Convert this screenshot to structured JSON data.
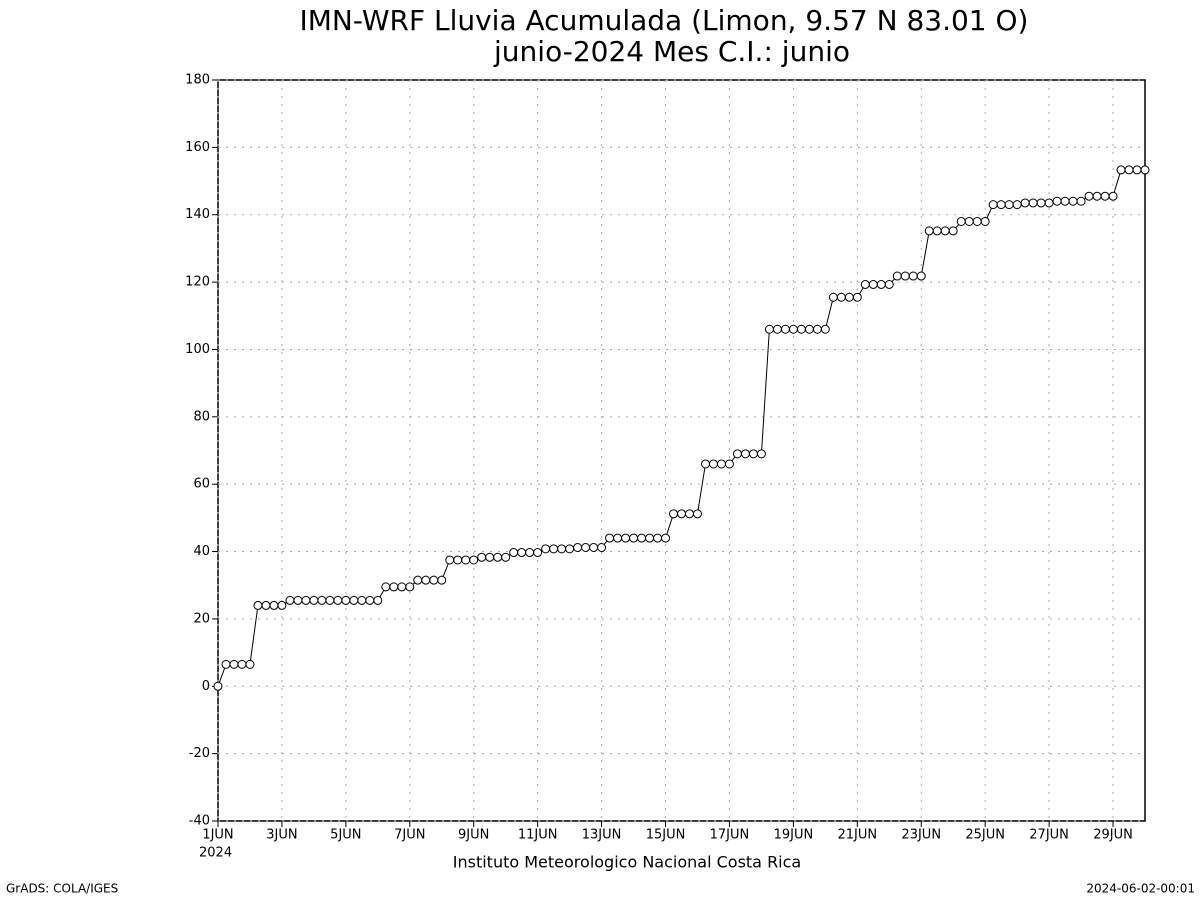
{
  "chart_data": {
    "type": "line",
    "title": "IMN-WRF  Lluvia Acumulada (Limon, 9.57  N 83.01  O)",
    "subtitle": "junio-2024 Mes C.I.: junio",
    "x_year_label": "2024",
    "footer_center": "Instituto Meteorologico Nacional Costa Rica",
    "footer_left": "GrADS: COLA/IGES",
    "footer_right": "2024-06-02-00:01",
    "x": [
      1,
      1.25,
      1.5,
      1.75,
      2,
      2.25,
      2.5,
      2.75,
      3,
      3.25,
      3.5,
      3.75,
      4,
      4.25,
      4.5,
      4.75,
      5,
      5.25,
      5.5,
      5.75,
      6,
      6.25,
      6.5,
      6.75,
      7,
      7.25,
      7.5,
      7.75,
      8,
      8.25,
      8.5,
      8.75,
      9,
      9.25,
      9.5,
      9.75,
      10,
      10.25,
      10.5,
      10.75,
      11,
      11.25,
      11.5,
      11.75,
      12,
      12.25,
      12.5,
      12.75,
      13,
      13.25,
      13.5,
      13.75,
      14,
      14.25,
      14.5,
      14.75,
      15,
      15.25,
      15.5,
      15.75,
      16,
      16.25,
      16.5,
      16.75,
      17,
      17.25,
      17.5,
      17.75,
      18,
      18.25,
      18.5,
      18.75,
      19,
      19.25,
      19.5,
      19.75,
      20,
      20.25,
      20.5,
      20.75,
      21,
      21.25,
      21.5,
      21.75,
      22,
      22.25,
      22.5,
      22.75,
      23,
      23.25,
      23.5,
      23.75,
      24,
      24.25,
      24.5,
      24.75,
      25,
      25.25,
      25.5,
      25.75,
      26,
      26.25,
      26.5,
      26.75,
      27,
      27.25,
      27.5,
      27.75,
      28,
      28.25,
      28.5,
      28.75,
      29,
      29.25,
      29.5,
      29.75,
      30
    ],
    "series": [
      {
        "color": "#000000",
        "marker_fill": "#ffffff",
        "values": [
          0,
          6.5,
          6.5,
          6.5,
          6.5,
          24,
          24,
          24,
          24,
          25.5,
          25.5,
          25.5,
          25.5,
          25.5,
          25.5,
          25.5,
          25.5,
          25.5,
          25.5,
          25.5,
          25.5,
          29.5,
          29.5,
          29.5,
          29.5,
          31.5,
          31.5,
          31.5,
          31.5,
          37.5,
          37.5,
          37.5,
          37.5,
          38.3,
          38.3,
          38.3,
          38.3,
          39.7,
          39.7,
          39.7,
          39.7,
          40.8,
          40.8,
          40.8,
          40.8,
          41.2,
          41.2,
          41.2,
          41.2,
          44,
          44,
          44,
          44,
          44,
          44,
          44,
          44,
          51.2,
          51.2,
          51.2,
          51.2,
          66,
          66,
          66,
          66,
          69,
          69,
          69,
          69,
          106,
          106,
          106,
          106,
          106,
          106,
          106,
          106,
          115.5,
          115.5,
          115.5,
          115.5,
          119.3,
          119.3,
          119.3,
          119.3,
          121.8,
          121.8,
          121.8,
          121.8,
          135.2,
          135.2,
          135.2,
          135.2,
          138,
          138,
          138,
          138,
          143,
          143,
          143,
          143,
          143.5,
          143.5,
          143.5,
          143.5,
          144,
          144,
          144,
          144,
          145.5,
          145.5,
          145.5,
          145.5,
          153.3,
          153.3,
          153.3,
          153.3
        ]
      }
    ],
    "xlim": [
      1,
      30
    ],
    "xticks": [
      {
        "value": 1,
        "label": "1JUN"
      },
      {
        "value": 3,
        "label": "3JUN"
      },
      {
        "value": 5,
        "label": "5JUN"
      },
      {
        "value": 7,
        "label": "7JUN"
      },
      {
        "value": 9,
        "label": "9JUN"
      },
      {
        "value": 11,
        "label": "11JUN"
      },
      {
        "value": 13,
        "label": "13JUN"
      },
      {
        "value": 15,
        "label": "15JUN"
      },
      {
        "value": 17,
        "label": "17JUN"
      },
      {
        "value": 19,
        "label": "19JUN"
      },
      {
        "value": 21,
        "label": "21JUN"
      },
      {
        "value": 23,
        "label": "23JUN"
      },
      {
        "value": 25,
        "label": "25JUN"
      },
      {
        "value": 27,
        "label": "27JUN"
      },
      {
        "value": 29,
        "label": "29JUN"
      }
    ],
    "ylim": [
      -40,
      180
    ],
    "yticks": [
      -40,
      -20,
      0,
      20,
      40,
      60,
      80,
      100,
      120,
      140,
      160,
      180
    ],
    "grid": true
  }
}
